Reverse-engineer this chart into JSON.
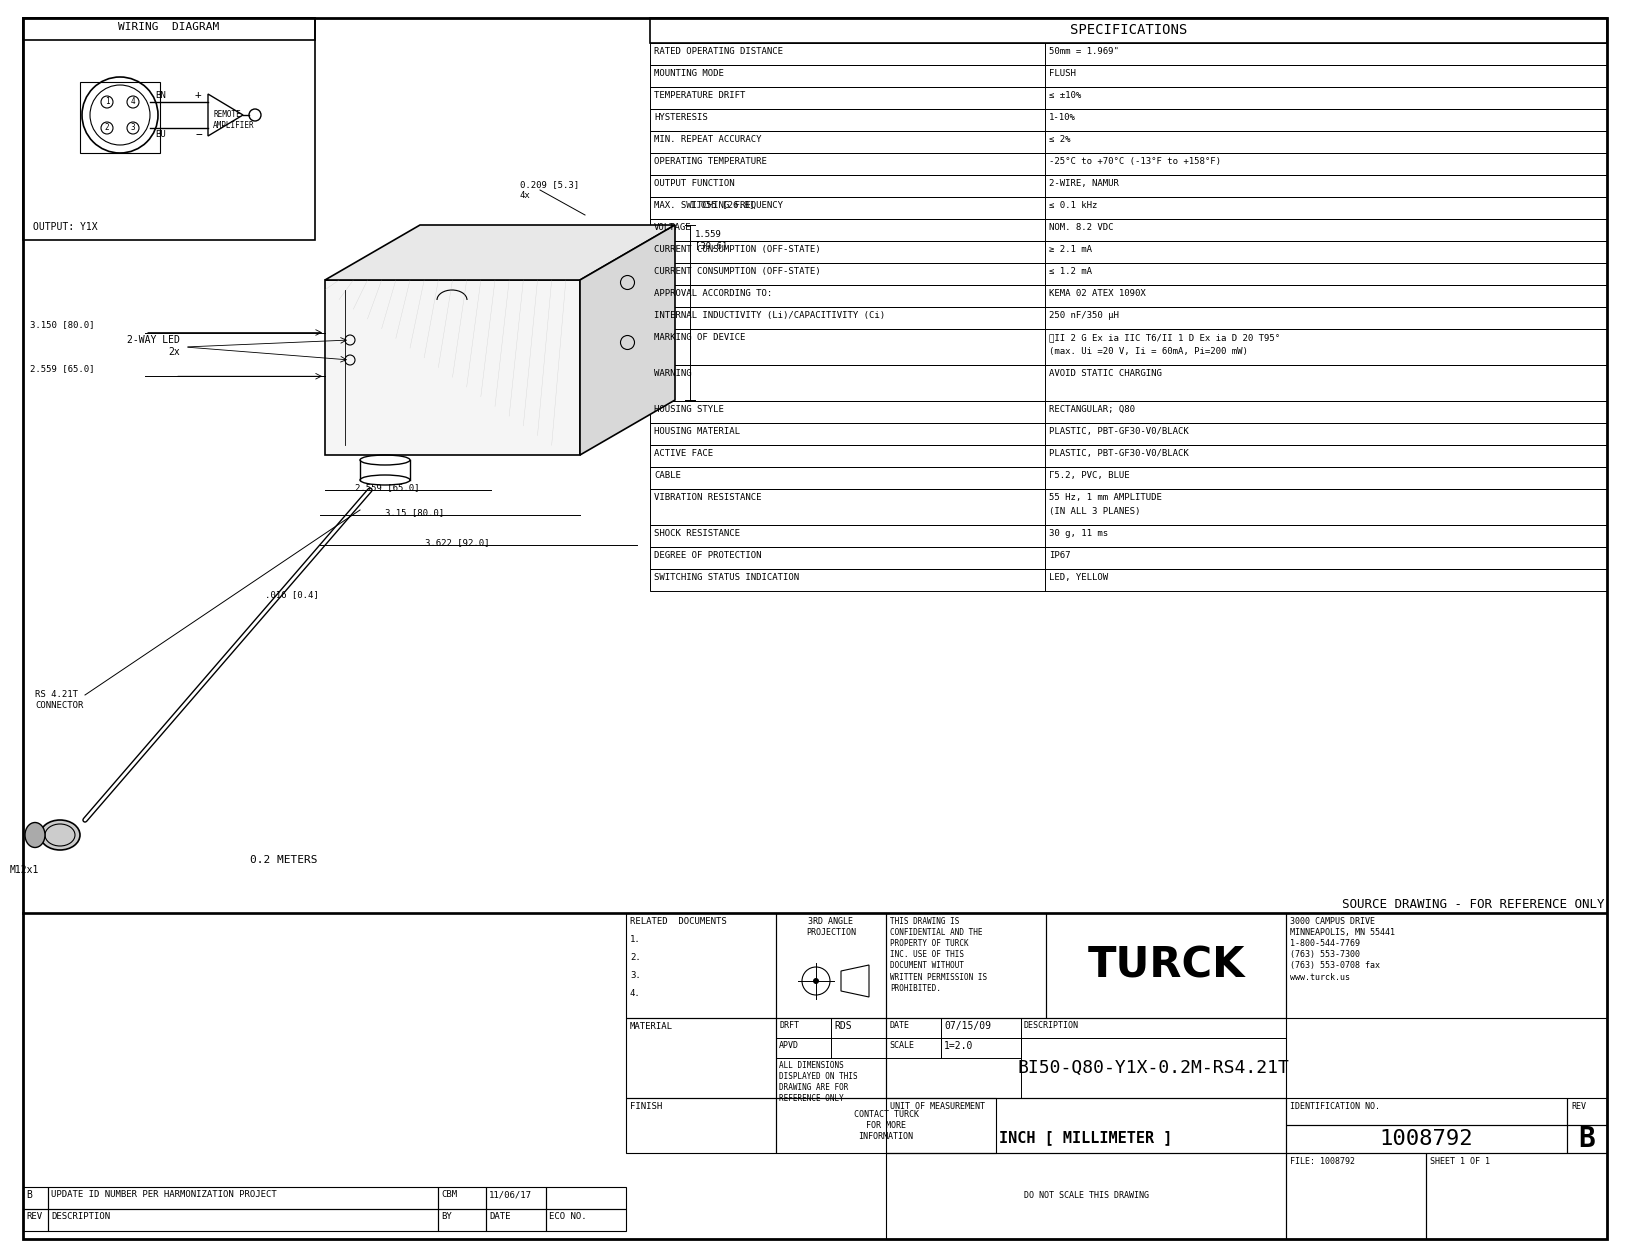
{
  "bg_color": "#ffffff",
  "specs_title": "SPECIFICATIONS",
  "wiring_title": "WIRING  DIAGRAM",
  "specs": [
    [
      "RATED OPERATING DISTANCE",
      "50mm = 1.969\""
    ],
    [
      "MOUNTING MODE",
      "FLUSH"
    ],
    [
      "TEMPERATURE DRIFT",
      "≤ ±10%"
    ],
    [
      "HYSTERESIS",
      "1-10%"
    ],
    [
      "MIN. REPEAT ACCURACY",
      "≤ 2%"
    ],
    [
      "OPERATING TEMPERATURE",
      "-25°C to +70°C (-13°F to +158°F)"
    ],
    [
      "OUTPUT FUNCTION",
      "2-WIRE, NAMUR"
    ],
    [
      "MAX. SWITCHING FREQUENCY",
      "≤ 0.1 kHz"
    ],
    [
      "VOLTAGE",
      "NOM. 8.2 VDC"
    ],
    [
      "CURRENT CONSUMPTION (OFF-STATE)",
      "≥ 2.1 mA"
    ],
    [
      "CURRENT CONSUMPTION (OFF-STATE)",
      "≤ 1.2 mA"
    ],
    [
      "APPROVAL ACCORDING TO:",
      "KEMA 02 ATEX 1090X"
    ],
    [
      "INTERNAL INDUCTIVITY (Li)/CAPACITIVITY (Ci)",
      "250 nF/350 μH"
    ],
    [
      "MARKING OF DEVICE",
      "ⓔII 2 G Ex ia IIC T6/II 1 D Ex ia D 20 T95°\n(max. Ui =20 V, Ii = 60mA, Pi=200 mW)"
    ],
    [
      "WARNING",
      "AVOID STATIC CHARGING\n "
    ],
    [
      "HOUSING STYLE",
      "RECTANGULAR; Q80"
    ],
    [
      "HOUSING MATERIAL",
      "PLASTIC, PBT-GF30-V0/BLACK"
    ],
    [
      "ACTIVE FACE",
      "PLASTIC, PBT-GF30-V0/BLACK"
    ],
    [
      "CABLE",
      "Γ5.2, PVC, BLUE"
    ],
    [
      "VIBRATION RESISTANCE",
      "55 Hz, 1 mm AMPLITUDE\n(IN ALL 3 PLANES)"
    ],
    [
      "SHOCK RESISTANCE",
      "30 g, 11 ms"
    ],
    [
      "DEGREE OF PROTECTION",
      "IP67"
    ],
    [
      "SWITCHING STATUS INDICATION",
      "LED, YELLOW"
    ]
  ],
  "source_note": "SOURCE DRAWING - FOR REFERENCE ONLY",
  "footer_cbm": "CBM",
  "footer_date": "11/06/17",
  "footer_rev": "REV",
  "footer_description": "DESCRIPTION",
  "footer_by": "BY",
  "footer_date2": "DATE",
  "footer_eco": "ECO NO.",
  "confidential_text": "THIS DRAWING IS\nCONFIDENTIAL AND THE\nPROPERTY OF TURCK\nINC. USE OF THIS\nDOCUMENT WITHOUT\nWRITTEN PERMISSION IS\nPROHIBITED.",
  "material_label": "MATERIAL",
  "drft_label": "DRFT",
  "drft_val": "RDS",
  "date_label": "DATE",
  "date_val": "07/15/09",
  "desc_label": "DESCRIPTION",
  "apvd_label": "APVD",
  "scale_label": "SCALE",
  "scale_val": "1=2.0",
  "part_number": "BI50-Q80-Y1X-0.2M-RS4.21T",
  "finish_label": "FINISH",
  "contact_label": "CONTACT TURCK\nFOR MORE\nINFORMATION",
  "unit_label": "UNIT OF MEASUREMENT",
  "unit_val": "INCH [ MILLIMETER ]",
  "do_not_scale": "DO NOT SCALE THIS DRAWING",
  "id_label": "IDENTIFICATION NO.",
  "id_val": "1008792",
  "rev_label": "REV",
  "rev_val": "B",
  "file_label": "FILE: 1008792",
  "sheet_label": "SHEET 1 OF 1",
  "company_addr": "3000 CAMPUS DRIVE\nMINNEAPOLIS, MN 55441\n1-800-544-7769\n(763) 553-7300\n(763) 553-0708 fax\nwww.turck.us",
  "output_label": "OUTPUT: Y1X",
  "led_label": "2-WAY LED\n2x",
  "dim1": "0.209 [5.3]\n4x",
  "dim2": "1.559\n[39.6]",
  "dim3": "1.055 [26.8]",
  "dim4": "3.150 [80.0]",
  "dim5": "2.559 [65.0]",
  "dim6": "2.559 [65.0]",
  "dim7": "3.15 [80.0]",
  "dim8": "3.622 [92.0]",
  "dim9": ".016 [0.4]",
  "dim10": "0.2 METERS",
  "rs_label": "RS 4.21T\nCONNECTOR",
  "m12_label": "M12x1",
  "bn_label": "BN",
  "bu_label": "BU",
  "remote_label": "REMOTE\nAMPLIFIER",
  "related_docs_nums": [
    "1.",
    "2.",
    "3.",
    "4."
  ]
}
